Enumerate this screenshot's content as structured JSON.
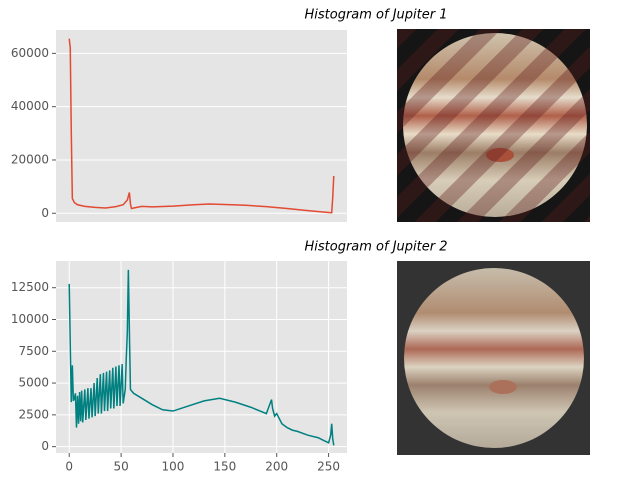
{
  "chart_data": [
    {
      "type": "line",
      "title": "Histogram of Jupiter 1",
      "x": [
        0,
        1,
        2,
        3,
        5,
        8,
        15,
        25,
        35,
        45,
        52,
        56,
        58,
        59,
        60,
        65,
        70,
        80,
        100,
        120,
        135,
        150,
        170,
        190,
        210,
        230,
        250,
        253,
        254,
        255
      ],
      "series": [
        {
          "color": "#E24A33",
          "values": [
            65500,
            62000,
            30000,
            5500,
            4000,
            3200,
            2600,
            2200,
            2000,
            2500,
            3200,
            5000,
            7800,
            3500,
            1800,
            2200,
            2600,
            2400,
            2700,
            3200,
            3500,
            3300,
            3000,
            2500,
            1800,
            1000,
            300,
            200,
            6000,
            14000
          ]
        }
      ],
      "xlim": [
        -12.75,
        267.75
      ],
      "ylim": [
        -3275,
        68775
      ],
      "yticks": [
        0,
        20000,
        40000,
        60000
      ],
      "grid": true
    },
    {
      "type": "line",
      "title": "Histogram of Jupiter 2",
      "x": [
        0,
        1,
        2,
        3,
        4,
        5,
        6,
        7,
        8,
        9,
        10,
        11,
        12,
        13,
        15,
        16,
        18,
        19,
        21,
        22,
        24,
        25,
        27,
        28,
        30,
        31,
        33,
        34,
        36,
        37,
        39,
        40,
        42,
        43,
        45,
        46,
        48,
        49,
        51,
        52,
        54,
        55,
        56,
        57,
        58,
        59,
        62,
        70,
        80,
        90,
        100,
        115,
        130,
        145,
        160,
        175,
        190,
        195,
        196,
        198,
        200,
        205,
        210,
        215,
        220,
        230,
        240,
        245,
        250,
        252,
        253,
        254,
        255
      ],
      "series": [
        {
          "color": "#008080",
          "values": [
            12800,
            8000,
            3500,
            6400,
            3600,
            3800,
            4200,
            1500,
            4000,
            1800,
            4300,
            2000,
            4400,
            1900,
            4500,
            2100,
            4600,
            2200,
            4600,
            2300,
            5000,
            2400,
            5400,
            2600,
            5700,
            2600,
            5800,
            2800,
            5900,
            2800,
            6000,
            3000,
            6200,
            3000,
            6300,
            3200,
            6400,
            3200,
            6500,
            3400,
            4500,
            7000,
            9000,
            13900,
            9000,
            4500,
            4200,
            3800,
            3300,
            2900,
            2800,
            3200,
            3600,
            3800,
            3500,
            3100,
            2600,
            3700,
            3000,
            2400,
            2600,
            1800,
            1500,
            1300,
            1200,
            900,
            700,
            500,
            300,
            900,
            1800,
            600,
            100
          ]
        }
      ],
      "xlim": [
        -12.75,
        267.75
      ],
      "ylim": [
        -500,
        14600
      ],
      "xticks": [
        0,
        50,
        100,
        150,
        200,
        250
      ],
      "yticks": [
        0,
        2500,
        5000,
        7500,
        10000,
        12500
      ],
      "grid": true
    }
  ]
}
